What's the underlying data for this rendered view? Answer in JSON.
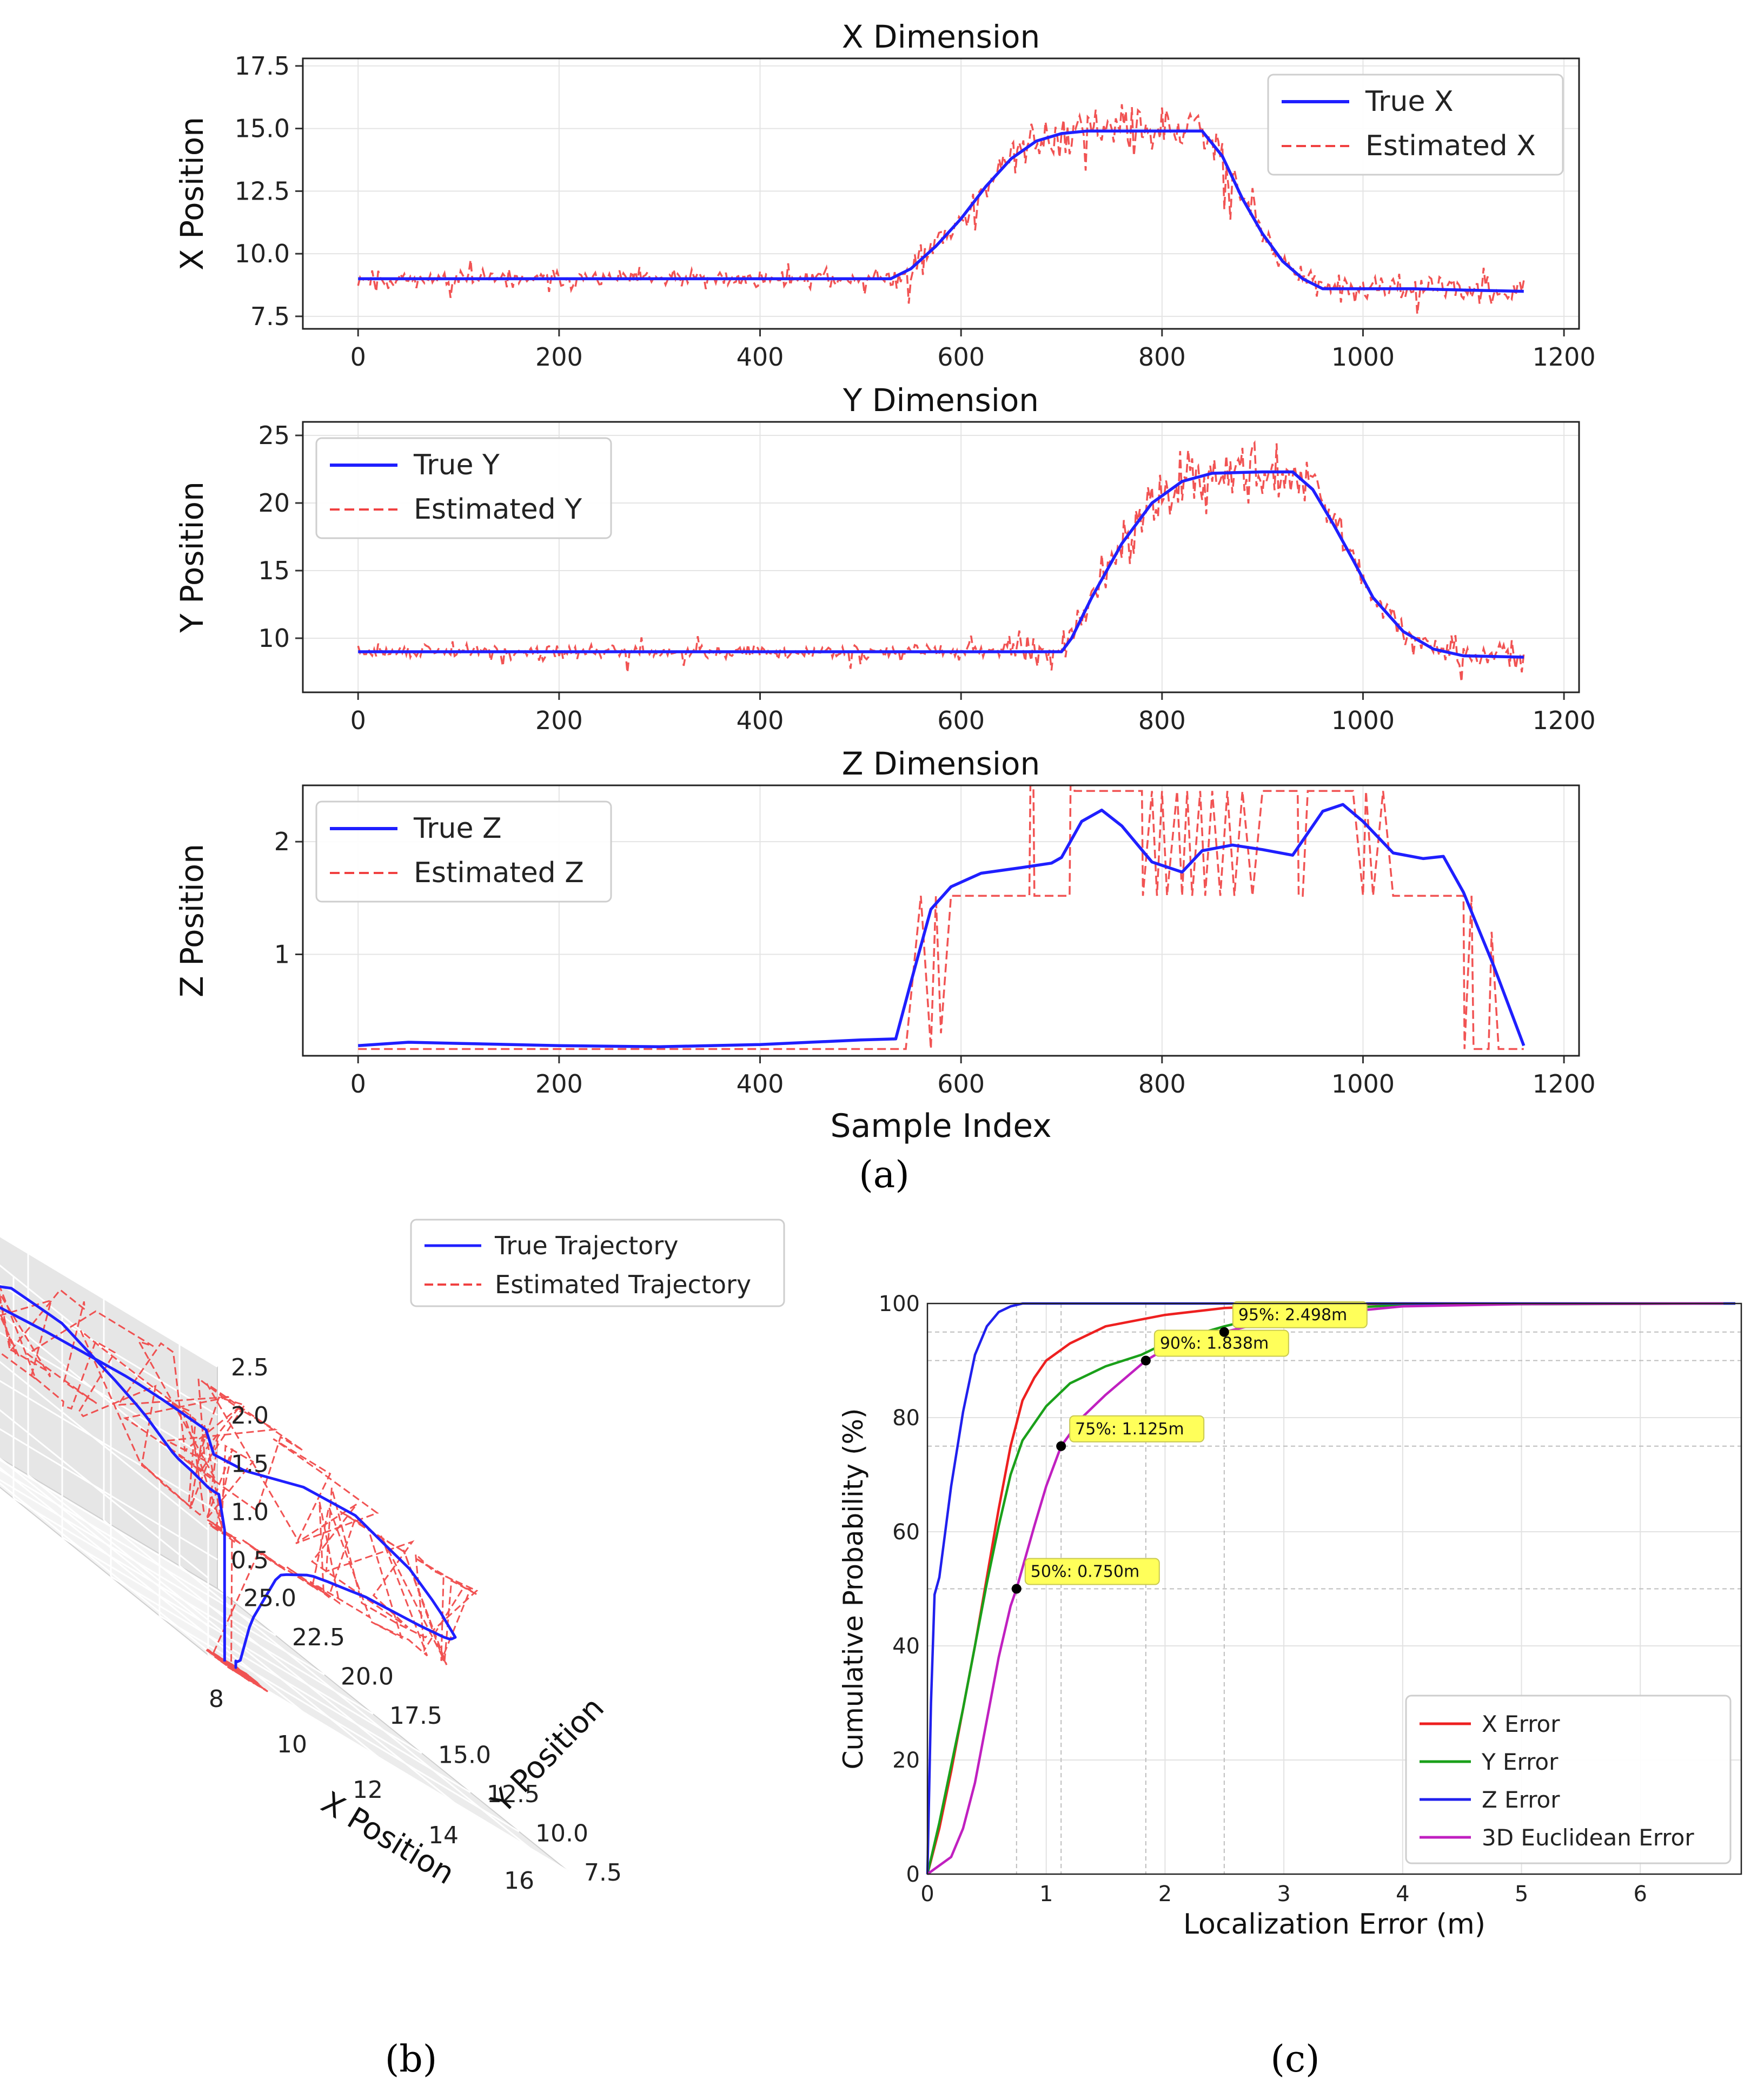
{
  "figure": {
    "panel_labels": {
      "a": "(a)",
      "b": "(b)",
      "c": "(c)"
    }
  },
  "chart_data": [
    {
      "id": "x-dimension",
      "type": "line",
      "title": "X Dimension",
      "xlabel": "",
      "ylabel": "X Position",
      "xlim": [
        -55,
        1215
      ],
      "ylim": [
        7.0,
        17.8
      ],
      "x_ticks": [
        0,
        200,
        400,
        600,
        800,
        1000,
        1200
      ],
      "x_tick_labels": [
        "0",
        "200",
        "400",
        "600",
        "800",
        "1000",
        "1200"
      ],
      "y_ticks": [
        7.5,
        10.0,
        12.5,
        15.0,
        17.5
      ],
      "y_tick_labels": [
        "7.5",
        "10.0",
        "12.5",
        "15.0",
        "17.5"
      ],
      "grid": true,
      "legend": {
        "placement": "top-right",
        "entries": [
          "True X",
          "Estimated X"
        ]
      },
      "series": [
        {
          "name": "True X",
          "style": "solid",
          "color": "#1f1fff",
          "x": [
            0,
            100,
            200,
            300,
            400,
            500,
            530,
            550,
            575,
            600,
            625,
            650,
            675,
            700,
            725,
            750,
            800,
            840,
            860,
            880,
            900,
            920,
            940,
            960,
            1000,
            1050,
            1100,
            1160
          ],
          "y": [
            9.0,
            9.0,
            9.0,
            9.0,
            9.0,
            9.0,
            9.0,
            9.4,
            10.3,
            11.4,
            12.7,
            13.8,
            14.5,
            14.8,
            14.9,
            14.9,
            14.9,
            14.9,
            13.9,
            12.2,
            10.8,
            9.7,
            9.0,
            8.6,
            8.6,
            8.6,
            8.55,
            8.5
          ]
        },
        {
          "name": "Estimated X",
          "style": "dashed",
          "color": "#f04040",
          "noisy_estimate_of": "True X",
          "noise_amplitude": [
            {
              "from": 0,
              "to": 530,
              "amp": 0.4
            },
            {
              "from": 530,
              "to": 650,
              "amp": 0.7
            },
            {
              "from": 650,
              "to": 900,
              "amp": 1.1
            },
            {
              "from": 900,
              "to": 1160,
              "amp": 0.55
            }
          ]
        }
      ]
    },
    {
      "id": "y-dimension",
      "type": "line",
      "title": "Y Dimension",
      "xlabel": "",
      "ylabel": "Y Position",
      "xlim": [
        -55,
        1215
      ],
      "ylim": [
        6.0,
        26.0
      ],
      "x_ticks": [
        0,
        200,
        400,
        600,
        800,
        1000,
        1200
      ],
      "x_tick_labels": [
        "0",
        "200",
        "400",
        "600",
        "800",
        "1000",
        "1200"
      ],
      "y_ticks": [
        10,
        15,
        20,
        25
      ],
      "y_tick_labels": [
        "10",
        "15",
        "20",
        "25"
      ],
      "grid": true,
      "legend": {
        "placement": "top-left",
        "entries": [
          "True Y",
          "Estimated Y"
        ]
      },
      "series": [
        {
          "name": "True Y",
          "style": "solid",
          "color": "#1f1fff",
          "x": [
            0,
            100,
            200,
            300,
            400,
            500,
            600,
            700,
            710,
            730,
            760,
            790,
            820,
            850,
            900,
            930,
            950,
            970,
            990,
            1010,
            1040,
            1070,
            1100,
            1160
          ],
          "y": [
            9.0,
            9.0,
            9.0,
            9.0,
            9.0,
            9.0,
            9.0,
            9.0,
            10.0,
            13.0,
            17.0,
            20.0,
            21.6,
            22.2,
            22.3,
            22.3,
            21.0,
            18.5,
            15.8,
            13.0,
            10.5,
            9.2,
            8.7,
            8.6
          ]
        },
        {
          "name": "Estimated Y",
          "style": "dashed",
          "color": "#f04040",
          "noisy_estimate_of": "True Y",
          "noise_amplitude": [
            {
              "from": 0,
              "to": 650,
              "amp": 0.6
            },
            {
              "from": 650,
              "to": 760,
              "amp": 1.8
            },
            {
              "from": 760,
              "to": 980,
              "amp": 2.3
            },
            {
              "from": 980,
              "to": 1160,
              "amp": 1.2
            }
          ]
        }
      ]
    },
    {
      "id": "z-dimension",
      "type": "line",
      "title": "Z Dimension",
      "xlabel": "Sample Index",
      "ylabel": "Z Position",
      "xlim": [
        -55,
        1215
      ],
      "ylim": [
        0.1,
        2.5
      ],
      "x_ticks": [
        0,
        200,
        400,
        600,
        800,
        1000,
        1200
      ],
      "x_tick_labels": [
        "0",
        "200",
        "400",
        "600",
        "800",
        "1000",
        "1200"
      ],
      "y_ticks": [
        1,
        2
      ],
      "y_tick_labels": [
        "1",
        "2"
      ],
      "grid": true,
      "legend": {
        "placement": "top-left",
        "entries": [
          "True Z",
          "Estimated Z"
        ]
      },
      "series": [
        {
          "name": "True Z",
          "style": "solid",
          "color": "#1f1fff",
          "x": [
            0,
            50,
            100,
            200,
            300,
            400,
            500,
            535,
            550,
            570,
            590,
            620,
            660,
            690,
            700,
            720,
            740,
            760,
            790,
            820,
            840,
            870,
            900,
            930,
            960,
            980,
            1000,
            1030,
            1060,
            1080,
            1100,
            1130,
            1160
          ],
          "y": [
            0.19,
            0.22,
            0.21,
            0.19,
            0.18,
            0.2,
            0.24,
            0.25,
            0.75,
            1.4,
            1.6,
            1.72,
            1.77,
            1.81,
            1.86,
            2.18,
            2.28,
            2.14,
            1.82,
            1.73,
            1.92,
            1.97,
            1.93,
            1.88,
            2.27,
            2.33,
            2.18,
            1.9,
            1.85,
            1.87,
            1.55,
            0.9,
            0.19
          ]
        },
        {
          "name": "Estimated Z",
          "style": "dashed",
          "color": "#f04040",
          "x": [
            0,
            540,
            545,
            560,
            570,
            575,
            580,
            590,
            600,
            660,
            668,
            669,
            672,
            673,
            700,
            708,
            709,
            712,
            713,
            720,
            725,
            780,
            781,
            790,
            795,
            800,
            805,
            815,
            820,
            825,
            830,
            838,
            843,
            850,
            858,
            865,
            872,
            880,
            890,
            900,
            935,
            936,
            940,
            945,
            970,
            980,
            990,
            1000,
            1003,
            1010,
            1020,
            1030,
            1040,
            1100,
            1101,
            1108,
            1110,
            1115,
            1125,
            1128,
            1135,
            1145,
            1160
          ],
          "y": [
            0.16,
            0.16,
            0.16,
            1.52,
            0.16,
            1.52,
            0.3,
            1.52,
            1.52,
            1.52,
            1.52,
            2.5,
            2.5,
            1.52,
            1.52,
            1.52,
            2.5,
            2.5,
            2.45,
            2.45,
            2.45,
            2.45,
            1.52,
            2.45,
            1.52,
            2.45,
            1.52,
            2.45,
            1.52,
            2.45,
            1.52,
            2.45,
            1.52,
            2.45,
            1.52,
            2.45,
            1.52,
            2.45,
            1.52,
            2.45,
            2.45,
            1.52,
            1.52,
            2.45,
            2.45,
            2.45,
            2.45,
            1.52,
            2.45,
            1.52,
            2.45,
            1.52,
            1.52,
            1.52,
            0.16,
            1.52,
            0.16,
            0.16,
            0.16,
            1.2,
            0.16,
            0.16,
            0.16
          ]
        }
      ]
    },
    {
      "id": "trajectory-3d",
      "type": "line",
      "projection": "3d",
      "xlabel": "X Position",
      "ylabel": "Y Position",
      "zlabel": "",
      "xlim": [
        7.5,
        17.0
      ],
      "ylim": [
        7.5,
        25.5
      ],
      "zlim": [
        0.2,
        2.5
      ],
      "x_ticks": [
        8,
        10,
        12,
        14,
        16
      ],
      "x_tick_labels": [
        "8",
        "10",
        "12",
        "14",
        "16"
      ],
      "y_ticks": [
        7.5,
        10.0,
        12.5,
        15.0,
        17.5,
        20.0,
        22.5,
        25.0
      ],
      "y_tick_labels": [
        "7.5",
        "10.0",
        "12.5",
        "15.0",
        "17.5",
        "20.0",
        "22.5",
        "25.0"
      ],
      "z_ticks": [
        0.5,
        1.0,
        1.5,
        2.0,
        2.5
      ],
      "z_tick_labels": [
        "0.5",
        "1.0",
        "1.5",
        "2.0",
        "2.5"
      ],
      "legend": {
        "placement": "top-right",
        "entries": [
          "True Trajectory",
          "Estimated Trajectory"
        ]
      },
      "series": [
        {
          "name": "True Trajectory",
          "style": "solid",
          "color": "#1f1fff",
          "source": "true X, Y, Z traces from panel (a)"
        },
        {
          "name": "Estimated Trajectory",
          "style": "dashed",
          "color": "#f04040",
          "source": "estimated X, Y, Z traces from panel (a)"
        }
      ]
    },
    {
      "id": "error-cdf",
      "type": "line",
      "title": "",
      "xlabel": "Localization Error (m)",
      "ylabel": "Cumulative Probability (%)",
      "xlim": [
        0,
        6.85
      ],
      "ylim": [
        0,
        100
      ],
      "x_ticks": [
        0,
        1,
        2,
        3,
        4,
        5,
        6
      ],
      "x_tick_labels": [
        "0",
        "1",
        "2",
        "3",
        "4",
        "5",
        "6"
      ],
      "y_ticks": [
        0,
        20,
        40,
        60,
        80,
        100
      ],
      "y_tick_labels": [
        "0",
        "20",
        "40",
        "60",
        "80",
        "100"
      ],
      "grid": true,
      "legend": {
        "placement": "bottom-right",
        "entries": [
          "X Error",
          "Y Error",
          "Z Error",
          "3D Euclidean Error"
        ]
      },
      "series": [
        {
          "name": "X Error",
          "color": "#ee2020",
          "x": [
            0,
            0.1,
            0.2,
            0.3,
            0.4,
            0.5,
            0.6,
            0.7,
            0.8,
            0.9,
            1.0,
            1.2,
            1.5,
            2.0,
            2.5,
            3.0,
            4.0,
            6.8
          ],
          "y": [
            0,
            8,
            18,
            29,
            40,
            52,
            64,
            75,
            83,
            87,
            90,
            93,
            96,
            98,
            99.2,
            99.7,
            100,
            100
          ]
        },
        {
          "name": "Y Error",
          "color": "#1aa01a",
          "x": [
            0,
            0.1,
            0.2,
            0.3,
            0.4,
            0.5,
            0.6,
            0.7,
            0.8,
            1.0,
            1.2,
            1.5,
            1.8,
            2.0,
            2.5,
            3.0,
            4.0,
            6.8
          ],
          "y": [
            0,
            9,
            19,
            29,
            40,
            51,
            61,
            70,
            76,
            82,
            86,
            89,
            91,
            93,
            96,
            98.5,
            99.8,
            100
          ]
        },
        {
          "name": "Z Error",
          "color": "#2020ee",
          "x": [
            0,
            0.03,
            0.06,
            0.1,
            0.15,
            0.2,
            0.3,
            0.4,
            0.5,
            0.6,
            0.7,
            0.8,
            0.9,
            6.8
          ],
          "y": [
            0,
            30,
            49,
            52,
            60,
            68,
            81,
            91,
            96,
            98.5,
            99.5,
            100,
            100,
            100
          ]
        },
        {
          "name": "3D Euclidean Error",
          "color": "#c020c0",
          "x": [
            0,
            0.2,
            0.3,
            0.4,
            0.5,
            0.6,
            0.7,
            0.75,
            0.9,
            1.0,
            1.125,
            1.3,
            1.5,
            1.838,
            2.0,
            2.498,
            3.0,
            4.0,
            5.0,
            6.7
          ],
          "y": [
            0,
            3,
            8,
            16,
            27,
            38,
            47,
            50,
            61,
            68,
            75,
            80,
            84,
            90,
            92,
            95,
            97.5,
            99.5,
            99.9,
            100
          ]
        }
      ],
      "annotations": [
        {
          "label": "50%:  0.750m",
          "x": 0.75,
          "y": 50
        },
        {
          "label": "75%:  1.125m",
          "x": 1.125,
          "y": 75
        },
        {
          "label": "90%:  1.838m",
          "x": 1.838,
          "y": 90
        },
        {
          "label": "95%:  2.498m",
          "x": 2.498,
          "y": 95
        }
      ]
    }
  ]
}
